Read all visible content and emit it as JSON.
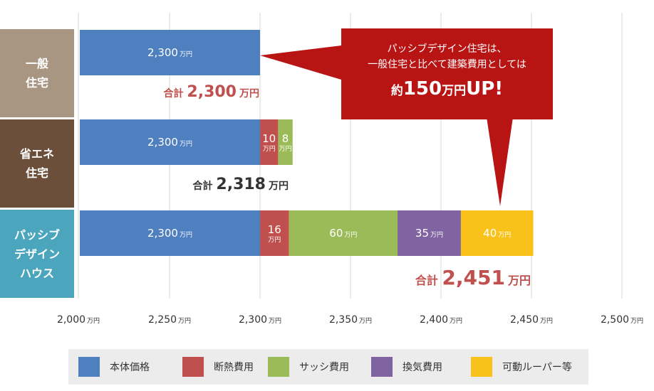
{
  "colors": {
    "honbody": "#4e7fbf",
    "insulation": "#c0504d",
    "sash": "#9bbb59",
    "ventilation": "#8064a2",
    "louver": "#f9c21b",
    "row1_label_bg": "#a89682",
    "row2_label_bg": "#6c4f3a",
    "row3_label_bg": "#4aa5bd",
    "callout_bg": "#b81414",
    "total_red": "#c0504d",
    "total_dark": "#333333"
  },
  "row_labels": [
    {
      "lines": [
        "一般",
        "住宅"
      ]
    },
    {
      "lines": [
        "省エネ",
        "住宅"
      ]
    },
    {
      "lines": [
        "パッシブ",
        "デザイン",
        "ハウス"
      ]
    }
  ],
  "callout": {
    "line1": "パッシブデザイン住宅は、",
    "line2": "一般住宅と比べて建築費用としては",
    "big_prefix": "約",
    "big_number": "150",
    "big_unit": "万円",
    "big_suffix": "UP!"
  },
  "chart_data": {
    "type": "bar",
    "orientation": "horizontal",
    "stacked": true,
    "xlim": [
      2000,
      2500
    ],
    "x_ticks": [
      2000,
      2250,
      2300,
      2350,
      2400,
      2450,
      2500
    ],
    "x_tick_labels": [
      "2,000",
      "2,250",
      "2,300",
      "2,350",
      "2,400",
      "2,450",
      "2,500"
    ],
    "x_tick_unit": "万円",
    "grid": true,
    "legend_placement": "bottom",
    "rows": [
      {
        "segments": [
          {
            "series": "本体価格",
            "value": 2300,
            "label": "2,300",
            "unit": "万円",
            "color": "#4e7fbf"
          }
        ],
        "total_prefix": "合計",
        "total_value": "2,300",
        "total_unit": "万円"
      },
      {
        "segments": [
          {
            "series": "本体価格",
            "value": 2300,
            "label": "2,300",
            "unit": "万円",
            "color": "#4e7fbf"
          },
          {
            "series": "断熱費用",
            "value": 10,
            "label": "10",
            "unit": "万円",
            "color": "#c0504d"
          },
          {
            "series": "サッシ費用",
            "value": 8,
            "label": "8",
            "unit": "万円",
            "color": "#9bbb59"
          }
        ],
        "total_prefix": "合計",
        "total_value": "2,318",
        "total_unit": "万円"
      },
      {
        "segments": [
          {
            "series": "本体価格",
            "value": 2300,
            "label": "2,300",
            "unit": "万円",
            "color": "#4e7fbf"
          },
          {
            "series": "断熱費用",
            "value": 16,
            "label": "16",
            "unit": "万円",
            "color": "#c0504d"
          },
          {
            "series": "サッシ費用",
            "value": 60,
            "label": "60",
            "unit": "万円",
            "color": "#9bbb59"
          },
          {
            "series": "換気費用",
            "value": 35,
            "label": "35",
            "unit": "万円",
            "color": "#8064a2"
          },
          {
            "series": "可動ルーパー等",
            "value": 40,
            "label": "40",
            "unit": "万円",
            "color": "#f9c21b"
          }
        ],
        "total_prefix": "合計",
        "total_value": "2,451",
        "total_unit": "万円"
      }
    ],
    "legend": [
      {
        "name": "本体価格",
        "color": "#4e7fbf"
      },
      {
        "name": "断熱費用",
        "color": "#c0504d"
      },
      {
        "name": "サッシ費用",
        "color": "#9bbb59"
      },
      {
        "name": "換気費用",
        "color": "#8064a2"
      },
      {
        "name": "可動ルーパー等",
        "color": "#f9c21b"
      }
    ]
  }
}
